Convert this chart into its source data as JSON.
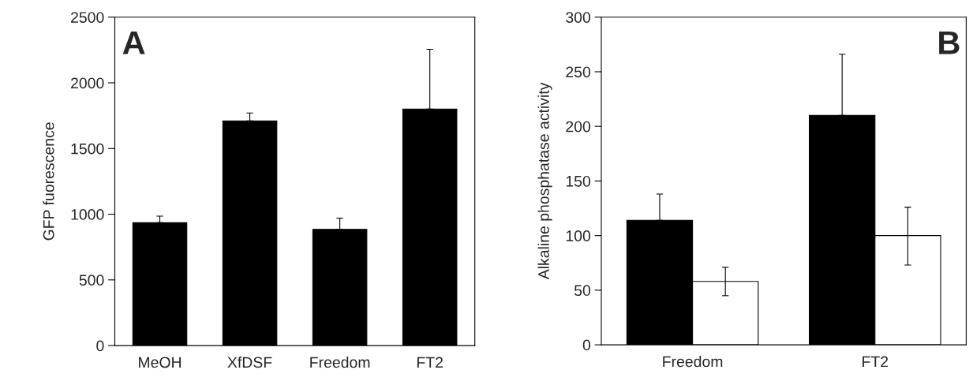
{
  "chart_data": [
    {
      "type": "bar",
      "ylabel": "GFP fuorescence",
      "categories": [
        "MeOH",
        "XfDSF",
        "Freedom",
        "FT2"
      ],
      "ylim": [
        0,
        2500
      ],
      "yticks": [
        0,
        500,
        1000,
        1500,
        2000,
        2500
      ],
      "annotations": [
        "A"
      ],
      "series": [
        {
          "color": "#000000",
          "values": [
            935,
            1710,
            885,
            1800
          ],
          "errors": [
            [
              935,
              985
            ],
            [
              1710,
              1770
            ],
            [
              885,
              970
            ],
            [
              1800,
              2255
            ]
          ]
        }
      ]
    },
    {
      "type": "bar",
      "ylabel": "Alkaline phosphatase activity",
      "categories": [
        "Freedom",
        "FT2"
      ],
      "ylim": [
        0,
        300
      ],
      "yticks": [
        0,
        50,
        100,
        150,
        200,
        250,
        300
      ],
      "annotations": [
        "B"
      ],
      "series": [
        {
          "color": "#000000",
          "values": [
            114,
            210
          ],
          "errors": [
            [
              114,
              138
            ],
            [
              210,
              266
            ]
          ]
        },
        {
          "color": "#ffffff",
          "values": [
            58,
            100
          ],
          "errors": [
            13,
            [
              73,
              126
            ]
          ]
        }
      ]
    }
  ]
}
